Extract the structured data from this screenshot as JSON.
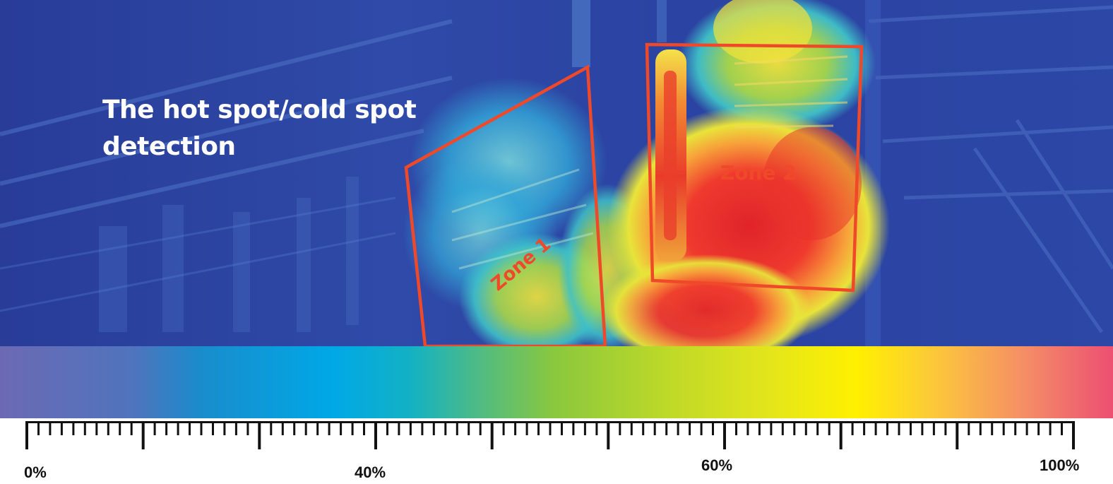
{
  "headline": "The hot spot/cold spot detection",
  "zones": [
    {
      "label": "Zone 1"
    },
    {
      "label": "Zone 2"
    }
  ],
  "scale": {
    "tick_labels": [
      "0%",
      "40%",
      "60%",
      "100%"
    ]
  },
  "colors": {
    "zone_outline": "#f0492a",
    "cold": "#6c69b4",
    "mid": "#8cc83d",
    "warm": "#fff000",
    "hot": "#ec4f72"
  }
}
